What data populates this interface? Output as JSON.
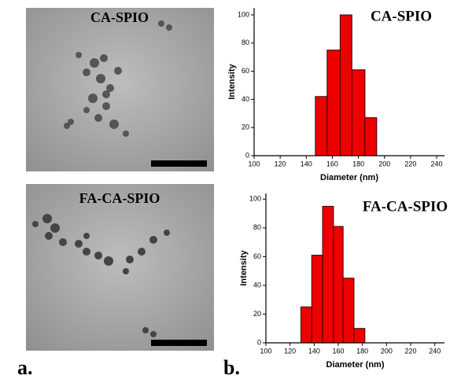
{
  "images": [
    {
      "label": "CA-SPIO"
    },
    {
      "label": "FA-CA-SPIO"
    }
  ],
  "panel_labels": [
    "a.",
    "b."
  ],
  "chart_data": [
    {
      "type": "histogram",
      "title": "CA-SPIO",
      "x_label": "Diameter (nm)",
      "y_label": "Intensity",
      "bins": [
        147,
        156,
        166,
        175,
        185,
        194
      ],
      "values": [
        42,
        75,
        100,
        61,
        27
      ],
      "color": "#ee0000",
      "xlim": [
        100,
        246
      ],
      "xticks": [
        100,
        120,
        140,
        160,
        180,
        200,
        220,
        240
      ],
      "ylim": [
        0,
        105
      ],
      "yticks": [
        0,
        20,
        40,
        60,
        80,
        100
      ]
    },
    {
      "type": "histogram",
      "title": "FA-CA-SPIO",
      "x_label": "Diameter (nm)",
      "y_label": "Intensity",
      "bins": [
        129,
        138,
        147,
        156,
        164,
        173,
        182
      ],
      "values": [
        25,
        61,
        95,
        81,
        45,
        10
      ],
      "color": "#ee0000",
      "xlim": [
        100,
        248
      ],
      "xticks": [
        100,
        120,
        140,
        160,
        180,
        200,
        220,
        240
      ],
      "ylim": [
        0,
        104
      ],
      "yticks": [
        0,
        20,
        40,
        60,
        80,
        100
      ]
    }
  ]
}
